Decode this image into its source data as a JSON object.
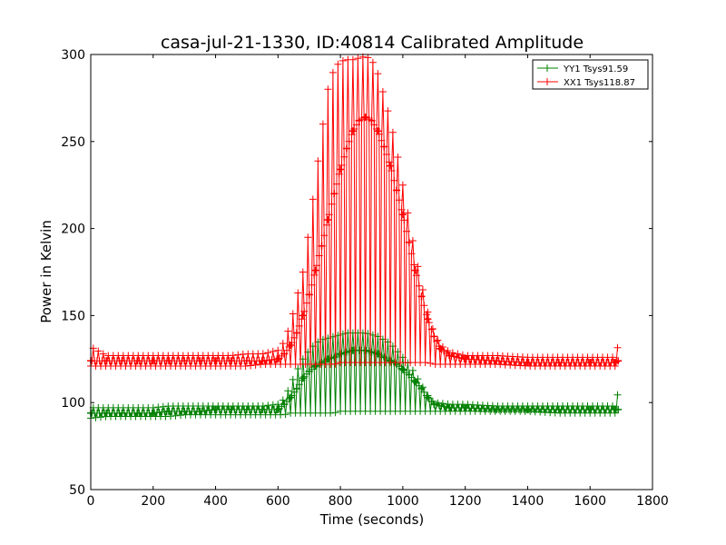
{
  "chart_data": {
    "type": "line",
    "title": "casa-jul-21-1330, ID:40814 Calibrated Amplitude",
    "xlabel": "Time (seconds)",
    "ylabel": "Power in Kelvin",
    "xlim": [
      0,
      1800
    ],
    "ylim": [
      50,
      300
    ],
    "xticks": [
      0,
      200,
      400,
      600,
      800,
      1000,
      1200,
      1400,
      1600,
      1800
    ],
    "yticks": [
      50,
      100,
      150,
      200,
      250,
      300
    ],
    "grid": false,
    "legend_position": "top-right",
    "series": [
      {
        "name": "YY1 Tsys91.59",
        "color": "#008000",
        "marker": "+",
        "x": [
          0,
          50,
          100,
          150,
          200,
          250,
          300,
          350,
          400,
          450,
          500,
          550,
          600,
          620,
          640,
          660,
          680,
          700,
          720,
          740,
          760,
          780,
          800,
          820,
          840,
          860,
          880,
          900,
          920,
          940,
          960,
          980,
          1000,
          1020,
          1040,
          1060,
          1080,
          1100,
          1150,
          1200,
          1300,
          1400,
          1500,
          1600,
          1680,
          1690
        ],
        "y": [
          94,
          94,
          94,
          94,
          94,
          95,
          95,
          95,
          96,
          96,
          96,
          96,
          96,
          99,
          103,
          108,
          114,
          118,
          121,
          123,
          125,
          126,
          128,
          129,
          130,
          130,
          130,
          129,
          128,
          126,
          124,
          122,
          119,
          116,
          112,
          108,
          103,
          99,
          97,
          97,
          96,
          96,
          96,
          96,
          96,
          96
        ],
        "y_min": [
          91,
          92,
          92,
          92,
          92,
          92,
          93,
          93,
          93,
          93,
          93,
          93,
          93,
          93,
          94,
          94,
          94,
          94,
          94,
          94,
          94,
          94,
          95,
          95,
          95,
          95,
          95,
          95,
          95,
          95,
          95,
          95,
          95,
          95,
          95,
          95,
          95,
          95,
          95,
          95,
          95,
          95,
          94,
          94,
          94,
          94
        ],
        "y_max": [
          97,
          97,
          97,
          97,
          97,
          98,
          98,
          98,
          98,
          98,
          98,
          98,
          99,
          102,
          110,
          118,
          125,
          130,
          134,
          136,
          137,
          138,
          139,
          140,
          140,
          140,
          140,
          139,
          138,
          136,
          134,
          130,
          126,
          122,
          116,
          110,
          104,
          100,
          99,
          99,
          98,
          98,
          98,
          98,
          98,
          106
        ]
      },
      {
        "name": "XX1 Tsys118.87",
        "color": "#ff0000",
        "marker": "+",
        "x": [
          0,
          50,
          100,
          150,
          200,
          250,
          300,
          350,
          400,
          450,
          500,
          550,
          600,
          620,
          640,
          660,
          680,
          700,
          720,
          740,
          760,
          780,
          800,
          820,
          840,
          860,
          880,
          900,
          920,
          940,
          960,
          980,
          1000,
          1020,
          1040,
          1060,
          1080,
          1100,
          1120,
          1150,
          1200,
          1300,
          1400,
          1500,
          1600,
          1680,
          1690
        ],
        "y": [
          124,
          124,
          124,
          124,
          124,
          124,
          124,
          124,
          124,
          124,
          124,
          124,
          125,
          128,
          133,
          140,
          150,
          162,
          176,
          190,
          205,
          220,
          234,
          246,
          256,
          262,
          264,
          262,
          256,
          247,
          236,
          222,
          208,
          192,
          176,
          161,
          148,
          138,
          131,
          127,
          125,
          124,
          123,
          123,
          123,
          123,
          124
        ],
        "y_min": [
          121,
          121,
          121,
          121,
          121,
          121,
          121,
          121,
          121,
          121,
          121,
          122,
          122,
          122,
          122,
          122,
          122,
          122,
          122,
          122,
          122,
          122,
          123,
          123,
          123,
          123,
          123,
          123,
          123,
          123,
          123,
          123,
          123,
          123,
          123,
          123,
          123,
          122,
          122,
          122,
          122,
          122,
          121,
          121,
          121,
          121,
          121
        ],
        "y_max": [
          132,
          127,
          127,
          127,
          127,
          127,
          127,
          127,
          127,
          127,
          128,
          128,
          130,
          135,
          145,
          160,
          175,
          200,
          228,
          255,
          280,
          292,
          296,
          297,
          297,
          298,
          299,
          297,
          289,
          276,
          262,
          245,
          225,
          205,
          185,
          168,
          152,
          140,
          133,
          129,
          127,
          127,
          126,
          126,
          126,
          126,
          133
        ]
      }
    ]
  }
}
